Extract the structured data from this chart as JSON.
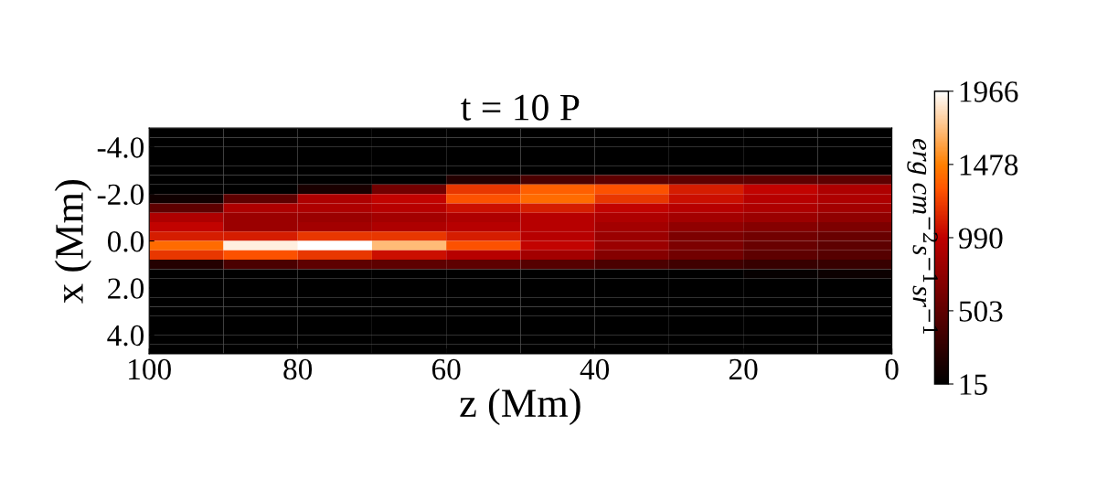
{
  "chart_data": {
    "type": "heatmap",
    "title": "t = 10 P",
    "xlabel": "z (Mm)",
    "ylabel": "x (Mm)",
    "clabel": "erg cm$^{−2}$s$^{−1}$sr$^{−1}$",
    "x": [
      95,
      85,
      75,
      65,
      55,
      45,
      35,
      25,
      15,
      5
    ],
    "y": [
      -4.6,
      -4.2,
      -3.8,
      -3.4,
      -3.0,
      -2.6,
      -2.2,
      -1.8,
      -1.4,
      -1.0,
      -0.6,
      -0.2,
      0.2,
      0.6,
      1.0,
      1.4,
      1.8,
      2.2,
      2.6,
      3.0,
      3.4,
      3.8,
      4.2,
      4.6
    ],
    "xlim": [
      100,
      0
    ],
    "xticks": [
      100,
      80,
      60,
      40,
      20,
      0
    ],
    "ylim": [
      4.8,
      -4.8
    ],
    "yticks": [
      {
        "value": -4,
        "label": "-4.0"
      },
      {
        "value": -2,
        "label": "-2.0"
      },
      {
        "value": 0,
        "label": "0.0"
      },
      {
        "value": 2,
        "label": "2.0"
      },
      {
        "value": 4,
        "label": "4.0"
      }
    ],
    "clim": [
      15,
      1966
    ],
    "cticks": [
      15,
      503,
      990,
      1478,
      1966
    ],
    "grid": false,
    "cells": [
      [
        15,
        15,
        15,
        15,
        15,
        15,
        15,
        15,
        15,
        15
      ],
      [
        15,
        15,
        15,
        15,
        15,
        15,
        15,
        15,
        15,
        15
      ],
      [
        15,
        15,
        15,
        15,
        15,
        15,
        15,
        15,
        15,
        15
      ],
      [
        15,
        15,
        15,
        15,
        15,
        15,
        15,
        15,
        15,
        15
      ],
      [
        15,
        15,
        15,
        15,
        15,
        15,
        15,
        15,
        15,
        15
      ],
      [
        15,
        15,
        15,
        15,
        200,
        400,
        500,
        500,
        500,
        500
      ],
      [
        15,
        15,
        150,
        600,
        1200,
        1350,
        1300,
        1100,
        1000,
        900
      ],
      [
        100,
        500,
        900,
        1000,
        1300,
        1400,
        1200,
        1050,
        950,
        900
      ],
      [
        500,
        900,
        900,
        950,
        1050,
        1100,
        1000,
        950,
        900,
        850
      ],
      [
        900,
        800,
        800,
        850,
        900,
        950,
        900,
        850,
        800,
        750
      ],
      [
        1000,
        800,
        850,
        900,
        950,
        950,
        850,
        750,
        700,
        650
      ],
      [
        1100,
        1100,
        1200,
        1200,
        1100,
        950,
        800,
        650,
        600,
        550
      ],
      [
        1400,
        1900,
        1966,
        1700,
        1300,
        1000,
        800,
        650,
        550,
        500
      ],
      [
        1200,
        1300,
        1200,
        1050,
        950,
        850,
        700,
        600,
        500,
        450
      ],
      [
        200,
        400,
        500,
        500,
        500,
        450,
        400,
        350,
        300,
        300
      ],
      [
        15,
        15,
        15,
        15,
        15,
        15,
        15,
        15,
        50,
        80
      ],
      [
        15,
        15,
        15,
        15,
        15,
        15,
        15,
        15,
        15,
        15
      ],
      [
        15,
        15,
        15,
        15,
        15,
        15,
        15,
        15,
        15,
        15
      ],
      [
        15,
        15,
        15,
        15,
        15,
        15,
        15,
        15,
        15,
        15
      ],
      [
        15,
        15,
        15,
        15,
        15,
        15,
        15,
        15,
        15,
        15
      ],
      [
        15,
        15,
        15,
        15,
        15,
        15,
        15,
        15,
        15,
        15
      ],
      [
        15,
        15,
        15,
        15,
        15,
        15,
        15,
        15,
        15,
        15
      ],
      [
        15,
        15,
        15,
        15,
        15,
        15,
        15,
        15,
        15,
        15
      ],
      [
        15,
        15,
        15,
        15,
        15,
        15,
        15,
        15,
        15,
        15
      ]
    ]
  }
}
